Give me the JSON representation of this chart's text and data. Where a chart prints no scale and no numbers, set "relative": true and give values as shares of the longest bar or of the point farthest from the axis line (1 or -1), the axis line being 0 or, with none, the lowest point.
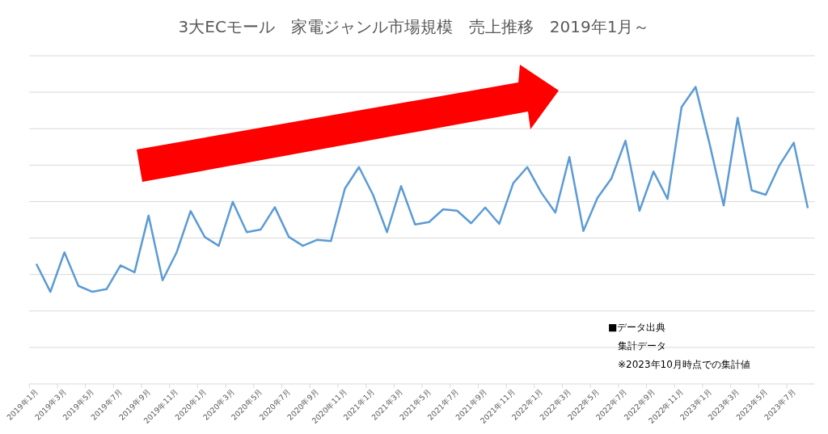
{
  "chart_data": {
    "type": "line",
    "title": "3大ECモール　家電ジャンル市場規模　売上推移　2019年1月～",
    "categories": [
      "2019年1月",
      null,
      "2019年3月",
      null,
      "2019年5月",
      null,
      "2019年7月",
      null,
      "2019年9月",
      null,
      "2019年11月",
      null,
      "2020年1月",
      null,
      "2020年3月",
      null,
      "2020年5月",
      null,
      "2020年7月",
      null,
      "2020年9月",
      null,
      "2020年11月",
      null,
      "2021年1月",
      null,
      "2021年3月",
      null,
      "2021年5月",
      null,
      "2021年7月",
      null,
      "2021年9月",
      null,
      "2021年11月",
      null,
      "2022年1月",
      null,
      "2022年3月",
      null,
      "2022年5月",
      null,
      "2022年7月",
      null,
      "2022年9月",
      null,
      "2022年11月",
      null,
      "2023年1月",
      null,
      "2023年3月",
      null,
      "2023年5月",
      null,
      "2023年7月",
      null
    ],
    "values": [
      0.404,
      0.31,
      0.443,
      0.33,
      0.31,
      0.319,
      0.399,
      0.376,
      0.567,
      0.349,
      0.443,
      0.582,
      0.495,
      0.465,
      0.613,
      0.511,
      0.52,
      0.595,
      0.495,
      0.465,
      0.485,
      0.481,
      0.658,
      0.73,
      0.637,
      0.511,
      0.666,
      0.537,
      0.545,
      0.588,
      0.583,
      0.541,
      0.594,
      0.539,
      0.676,
      0.73,
      0.644,
      0.577,
      0.764,
      0.515,
      0.626,
      0.692,
      0.819,
      0.583,
      0.715,
      0.623,
      0.932,
      1,
      0.808,
      0.601,
      0.896,
      0.652,
      0.637,
      0.738,
      0.812,
      0.592
    ],
    "color": "#5b9bd5",
    "relative": true,
    "grid": true,
    "annotations": [
      "■データ出典",
      "集計データ",
      "※2023年10月時点での集計値"
    ]
  }
}
